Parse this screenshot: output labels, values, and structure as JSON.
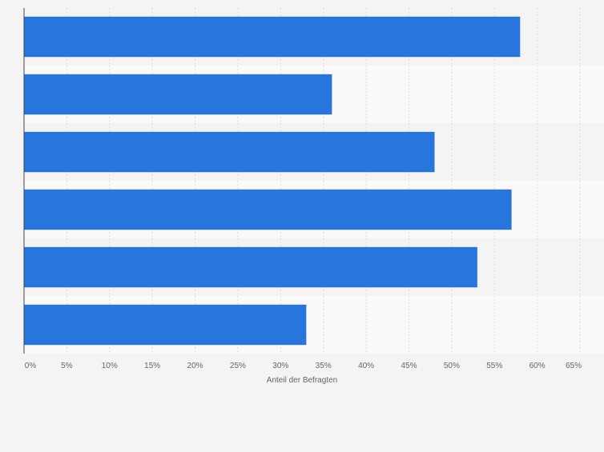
{
  "chart_data": {
    "type": "bar",
    "orientation": "horizontal",
    "categories": [
      "",
      "",
      "",
      "",
      "",
      ""
    ],
    "values": [
      58,
      36,
      48,
      57,
      53,
      33
    ],
    "xlim": [
      0,
      65
    ],
    "xticks": [
      "0%",
      "5%",
      "10%",
      "15%",
      "20%",
      "25%",
      "30%",
      "35%",
      "40%",
      "45%",
      "50%",
      "55%",
      "60%",
      "65%"
    ],
    "xlabel": "Anteil der Befragten",
    "unit": "%",
    "grid": true,
    "bar_color": "#2876dd",
    "band_colors": [
      "#f4f4f4",
      "#f9f9f9"
    ]
  }
}
